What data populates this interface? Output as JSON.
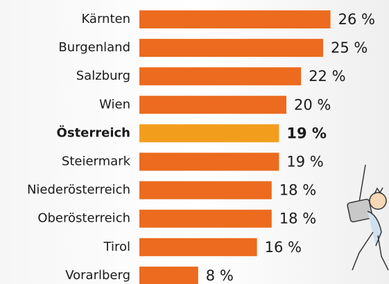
{
  "chart_data": {
    "type": "bar",
    "orientation": "horizontal",
    "categories": [
      "Kärnten",
      "Burgenland",
      "Salzburg",
      "Wien",
      "Österreich",
      "Steiermark",
      "Niederösterreich",
      "Oberösterreich",
      "Tirol",
      "Vorarlberg"
    ],
    "values": [
      26,
      25,
      22,
      20,
      19,
      19,
      18,
      18,
      16,
      8
    ],
    "value_labels": [
      "26 %",
      "25 %",
      "22 %",
      "20 %",
      "19 %",
      "19 %",
      "18 %",
      "18 %",
      "16 %",
      "8 %"
    ],
    "colors": [
      "#ec6b1e",
      "#ec6b1e",
      "#ec6b1e",
      "#ec6b1e",
      "#f39d1d",
      "#ec6b1e",
      "#ec6b1e",
      "#ec6b1e",
      "#ec6b1e",
      "#ec6b1e"
    ],
    "emphasis": [
      false,
      false,
      false,
      false,
      true,
      false,
      false,
      false,
      false,
      false
    ]
  }
}
